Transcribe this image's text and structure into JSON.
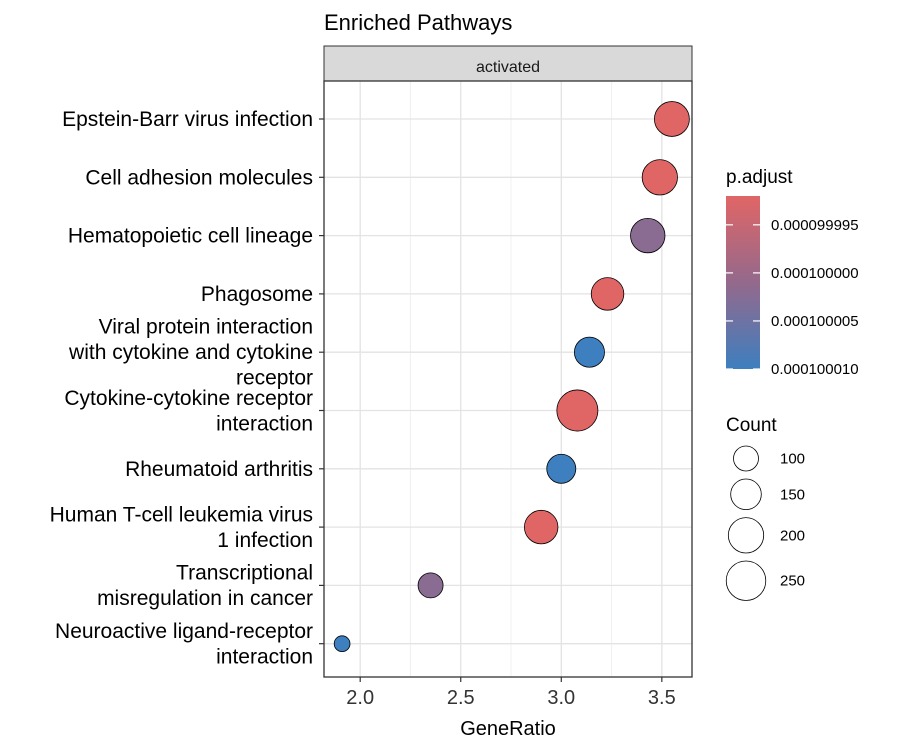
{
  "chart_data": {
    "type": "scatter",
    "title": "Enriched Pathways",
    "facet": "activated",
    "xlabel": "GeneRatio",
    "ylabel": "",
    "xlim": [
      1.82,
      3.65
    ],
    "x_ticks": [
      "2.0",
      "2.5",
      "3.0",
      "3.5"
    ],
    "x_tick_values": [
      2.0,
      2.5,
      3.0,
      3.5
    ],
    "grid": true,
    "legend_position": "right",
    "categories": [
      [
        "Epstein-Barr virus infection"
      ],
      [
        "Cell adhesion molecules"
      ],
      [
        "Hematopoietic cell lineage"
      ],
      [
        "Phagosome"
      ],
      [
        "Viral protein interaction",
        "with cytokine and cytokine",
        "receptor"
      ],
      [
        "Cytokine-cytokine receptor",
        "interaction"
      ],
      [
        "Rheumatoid arthritis"
      ],
      [
        "Human T-cell leukemia virus",
        "1 infection"
      ],
      [
        "Transcriptional",
        "misregulation in cancer"
      ],
      [
        "Neuroactive ligand-receptor",
        "interaction"
      ]
    ],
    "points": [
      {
        "x": 3.55,
        "count": 195,
        "p_adjust": 9.9992e-05
      },
      {
        "x": 3.49,
        "count": 200,
        "p_adjust": 9.9992e-05
      },
      {
        "x": 3.43,
        "count": 190,
        "p_adjust": 0.000100002
      },
      {
        "x": 3.23,
        "count": 170,
        "p_adjust": 9.9992e-05
      },
      {
        "x": 3.14,
        "count": 145,
        "p_adjust": 0.00010001
      },
      {
        "x": 3.08,
        "count": 270,
        "p_adjust": 9.9992e-05
      },
      {
        "x": 3.0,
        "count": 135,
        "p_adjust": 0.00010001
      },
      {
        "x": 2.9,
        "count": 180,
        "p_adjust": 9.9992e-05
      },
      {
        "x": 2.35,
        "count": 100,
        "p_adjust": 0.000100002
      },
      {
        "x": 1.91,
        "count": 40,
        "p_adjust": 0.00010001
      }
    ],
    "color_legend": {
      "title": "p.adjust",
      "labels": [
        "0.000099995",
        "0.000100000",
        "0.000100005",
        "0.000100010"
      ],
      "values": [
        9.9995e-05,
        0.0001,
        0.000100005,
        0.00010001
      ],
      "range": [
        9.9992e-05,
        0.00010001
      ],
      "low_color": "#e06666",
      "high_color": "#3d7fbf",
      "mid_color": "#94698c"
    },
    "size_legend": {
      "title": "Count",
      "labels": [
        "100",
        "150",
        "200",
        "250"
      ],
      "values": [
        100,
        150,
        200,
        250
      ]
    }
  }
}
